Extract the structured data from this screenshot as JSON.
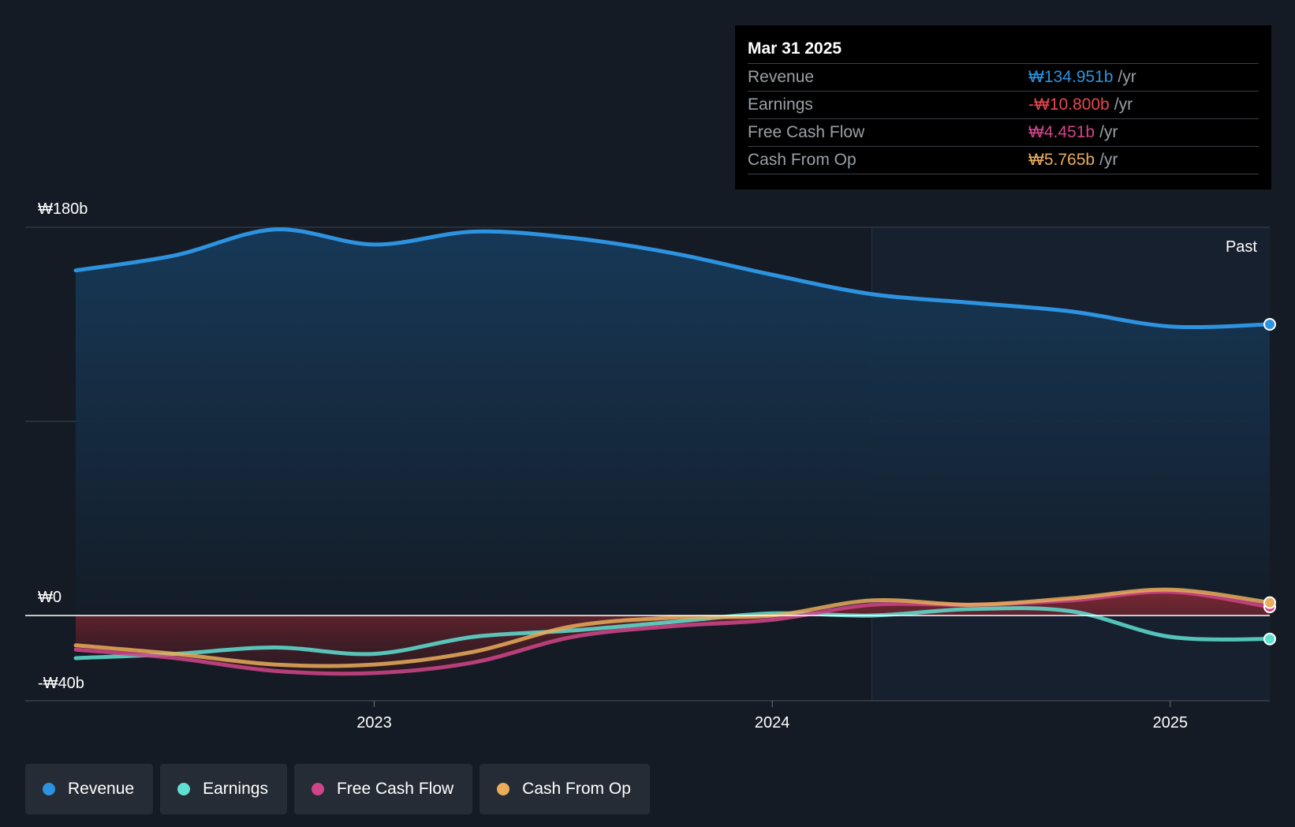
{
  "tooltip": {
    "date": "Mar 31 2025",
    "rows": [
      {
        "name": "Revenue",
        "value": "₩134.951b",
        "unit": "/yr",
        "color": "#2d93e0"
      },
      {
        "name": "Earnings",
        "value": "-₩10.800b",
        "unit": "/yr",
        "color": "#e8474f"
      },
      {
        "name": "Free Cash Flow",
        "value": "₩4.451b",
        "unit": "/yr",
        "color": "#d0458a"
      },
      {
        "name": "Cash From Op",
        "value": "₩5.765b",
        "unit": "/yr",
        "color": "#e9ad5b"
      }
    ]
  },
  "legend": [
    {
      "label": "Revenue",
      "color": "#2d93e0"
    },
    {
      "label": "Earnings",
      "color": "#5fe0d2"
    },
    {
      "label": "Free Cash Flow",
      "color": "#d0458a"
    },
    {
      "label": "Cash From Op",
      "color": "#e9ad5b"
    }
  ],
  "chart_data": {
    "type": "area",
    "past_label": "Past",
    "y_tick_labels": [
      "₩180b",
      "₩0",
      "-₩40b"
    ],
    "y_ticks": [
      180,
      0,
      -40
    ],
    "ylim": [
      -40,
      180
    ],
    "x_tick_labels": [
      "2023",
      "2024",
      "2025"
    ],
    "x_ticks": [
      2023.0,
      2024.0,
      2025.0
    ],
    "xlim": [
      2022.25,
      2025.25
    ],
    "past_start": 2024.25,
    "grid": true,
    "legend_position": "bottom-left",
    "series": [
      {
        "name": "Revenue",
        "color": "#2d93e0",
        "x": [
          2022.25,
          2022.5,
          2022.75,
          2023.0,
          2023.25,
          2023.5,
          2023.75,
          2024.0,
          2024.25,
          2024.5,
          2024.75,
          2025.0,
          2025.25
        ],
        "values": [
          160,
          167,
          179,
          172,
          178,
          175,
          168,
          158,
          149,
          145,
          141,
          134,
          135
        ]
      },
      {
        "name": "Earnings",
        "color": "#5fe0d2",
        "x": [
          2022.25,
          2022.5,
          2022.75,
          2023.0,
          2023.25,
          2023.5,
          2023.75,
          2024.0,
          2024.25,
          2024.5,
          2024.75,
          2025.0,
          2025.25
        ],
        "values": [
          -20,
          -18,
          -15,
          -18,
          -10,
          -7,
          -3,
          1,
          0,
          3,
          2,
          -10,
          -11
        ]
      },
      {
        "name": "Free Cash Flow",
        "color": "#d0458a",
        "x": [
          2022.25,
          2022.5,
          2022.75,
          2023.0,
          2023.25,
          2023.5,
          2023.75,
          2024.0,
          2024.25,
          2024.5,
          2024.75,
          2025.0,
          2025.25
        ],
        "values": [
          -16,
          -20,
          -26,
          -27,
          -22,
          -10,
          -5,
          -2,
          5,
          5,
          7,
          11,
          4
        ]
      },
      {
        "name": "Cash From Op",
        "color": "#e9ad5b",
        "x": [
          2022.25,
          2022.5,
          2022.75,
          2023.0,
          2023.25,
          2023.5,
          2023.75,
          2024.0,
          2024.25,
          2024.5,
          2024.75,
          2025.0,
          2025.25
        ],
        "values": [
          -14,
          -18,
          -23,
          -23,
          -17,
          -5,
          -1,
          0,
          7,
          5,
          8,
          12,
          6
        ]
      }
    ]
  }
}
